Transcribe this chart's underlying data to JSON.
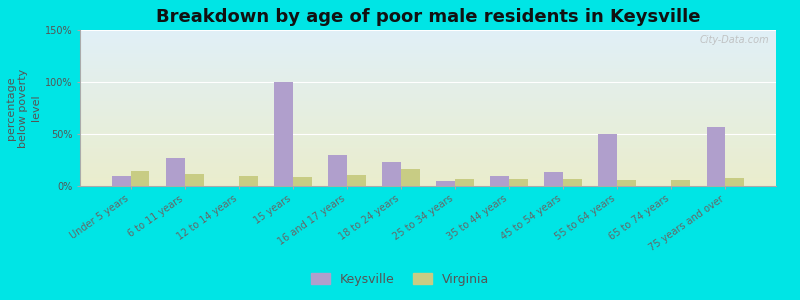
{
  "title": "Breakdown by age of poor male residents in Keysville",
  "ylabel": "percentage\nbelow poverty\nlevel",
  "categories": [
    "Under 5 years",
    "6 to 11 years",
    "12 to 14 years",
    "15 years",
    "16 and 17 years",
    "18 to 24 years",
    "25 to 34 years",
    "35 to 44 years",
    "45 to 54 years",
    "55 to 64 years",
    "65 to 74 years",
    "75 years and over"
  ],
  "keysville_values": [
    10,
    27,
    0,
    100,
    30,
    23,
    5,
    10,
    13,
    50,
    0,
    57
  ],
  "virginia_values": [
    14,
    12,
    10,
    9,
    11,
    16,
    7,
    7,
    7,
    6,
    6,
    8
  ],
  "keysville_color": "#b09fcc",
  "virginia_color": "#c8cc84",
  "outer_bg_color": "#00e5e5",
  "bg_top_color": "#e0eff7",
  "bg_bottom_color": "#eaedcc",
  "ylim": [
    0,
    150
  ],
  "yticks": [
    0,
    50,
    100,
    150
  ],
  "ytick_labels": [
    "0%",
    "50%",
    "100%",
    "150%"
  ],
  "bar_width": 0.35,
  "title_fontsize": 13,
  "axis_label_fontsize": 8,
  "tick_fontsize": 7,
  "legend_fontsize": 9,
  "watermark": "City-Data.com"
}
